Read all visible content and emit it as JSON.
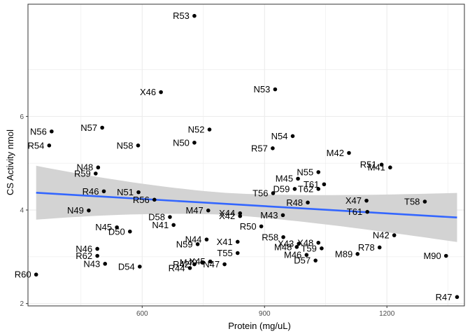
{
  "chart_data": {
    "type": "scatter",
    "title": "",
    "xlabel": "Protein (mg/uL)",
    "ylabel": "CS Activity nmol",
    "xlim": [
      320,
      1390
    ],
    "ylim": [
      1.95,
      8.4
    ],
    "x_ticks": [
      600,
      900,
      1200
    ],
    "y_ticks": [
      2,
      4,
      6
    ],
    "x_tick_labels": [
      "600",
      "900",
      "1200"
    ],
    "y_tick_labels": [
      "2",
      "4",
      "6"
    ],
    "grid": true,
    "legend": "none",
    "points": [
      {
        "label": "R53",
        "x": 728,
        "y": 8.15
      },
      {
        "label": "X46",
        "x": 646,
        "y": 6.52
      },
      {
        "label": "N53",
        "x": 926,
        "y": 6.58
      },
      {
        "label": "N56",
        "x": 378,
        "y": 5.68
      },
      {
        "label": "N57",
        "x": 502,
        "y": 5.76
      },
      {
        "label": "N52",
        "x": 765,
        "y": 5.72
      },
      {
        "label": "N54",
        "x": 969,
        "y": 5.58
      },
      {
        "label": "R54",
        "x": 372,
        "y": 5.38
      },
      {
        "label": "N58",
        "x": 590,
        "y": 5.38
      },
      {
        "label": "N50",
        "x": 728,
        "y": 5.44
      },
      {
        "label": "R57",
        "x": 920,
        "y": 5.32
      },
      {
        "label": "M42",
        "x": 1107,
        "y": 5.22
      },
      {
        "label": "R51",
        "x": 1187,
        "y": 4.97
      },
      {
        "label": "M41",
        "x": 1208,
        "y": 4.91
      },
      {
        "label": "N48",
        "x": 492,
        "y": 4.91
      },
      {
        "label": "R59",
        "x": 486,
        "y": 4.78
      },
      {
        "label": "N55",
        "x": 1032,
        "y": 4.81
      },
      {
        "label": "M45",
        "x": 982,
        "y": 4.67
      },
      {
        "label": "T61",
        "x": 1046,
        "y": 4.55
      },
      {
        "label": "R46",
        "x": 506,
        "y": 4.4
      },
      {
        "label": "N51",
        "x": 591,
        "y": 4.38
      },
      {
        "label": "T56",
        "x": 921,
        "y": 4.36
      },
      {
        "label": "D59",
        "x": 974,
        "y": 4.45
      },
      {
        "label": "T62",
        "x": 1032,
        "y": 4.45
      },
      {
        "label": "R56",
        "x": 630,
        "y": 4.22
      },
      {
        "label": "R48",
        "x": 1006,
        "y": 4.16
      },
      {
        "label": "X47",
        "x": 1150,
        "y": 4.2
      },
      {
        "label": "T58",
        "x": 1293,
        "y": 4.18
      },
      {
        "label": "N49",
        "x": 469,
        "y": 3.99
      },
      {
        "label": "M47",
        "x": 762,
        "y": 3.99
      },
      {
        "label": "T61",
        "x": 1152,
        "y": 3.96
      },
      {
        "label": "X44",
        "x": 840,
        "y": 3.93
      },
      {
        "label": "X42",
        "x": 840,
        "y": 3.87
      },
      {
        "label": "M43",
        "x": 945,
        "y": 3.89
      },
      {
        "label": "D58",
        "x": 668,
        "y": 3.85
      },
      {
        "label": "R50",
        "x": 892,
        "y": 3.65
      },
      {
        "label": "N41",
        "x": 677,
        "y": 3.68
      },
      {
        "label": "N45",
        "x": 538,
        "y": 3.63
      },
      {
        "label": "D50",
        "x": 570,
        "y": 3.54
      },
      {
        "label": "R58",
        "x": 946,
        "y": 3.42
      },
      {
        "label": "N44",
        "x": 758,
        "y": 3.37
      },
      {
        "label": "X41",
        "x": 834,
        "y": 3.32
      },
      {
        "label": "X43",
        "x": 984,
        "y": 3.28
      },
      {
        "label": "X48",
        "x": 1032,
        "y": 3.3
      },
      {
        "label": "N42",
        "x": 1218,
        "y": 3.46
      },
      {
        "label": "N59",
        "x": 736,
        "y": 3.27
      },
      {
        "label": "M48",
        "x": 979,
        "y": 3.21
      },
      {
        "label": "T59",
        "x": 1040,
        "y": 3.18
      },
      {
        "label": "R78",
        "x": 1182,
        "y": 3.2
      },
      {
        "label": "N46",
        "x": 490,
        "y": 3.17
      },
      {
        "label": "T55",
        "x": 834,
        "y": 3.08
      },
      {
        "label": "M89",
        "x": 1128,
        "y": 3.06
      },
      {
        "label": "M46",
        "x": 1003,
        "y": 3.04
      },
      {
        "label": "R62",
        "x": 490,
        "y": 3.02
      },
      {
        "label": "M90",
        "x": 1345,
        "y": 3.02
      },
      {
        "label": "D57",
        "x": 1025,
        "y": 2.92
      },
      {
        "label": "N43",
        "x": 509,
        "y": 2.85
      },
      {
        "label": "D54",
        "x": 594,
        "y": 2.79
      },
      {
        "label": "R42",
        "x": 728,
        "y": 2.84
      },
      {
        "label": "M49",
        "x": 747,
        "y": 2.88
      },
      {
        "label": "X45",
        "x": 767,
        "y": 2.9
      },
      {
        "label": "N47",
        "x": 802,
        "y": 2.84
      },
      {
        "label": "R44",
        "x": 717,
        "y": 2.76
      },
      {
        "label": "R60",
        "x": 340,
        "y": 2.62
      },
      {
        "label": "R47",
        "x": 1372,
        "y": 2.14
      }
    ],
    "trend": {
      "method": "linear",
      "x": [
        340,
        1372
      ],
      "y": [
        4.37,
        3.84
      ],
      "ci_lower": [
        3.67,
        3.31
      ],
      "ci_upper": [
        5.06,
        4.36
      ]
    },
    "colors": {
      "point": "#000000",
      "line": "#3366ff",
      "ribbon": "#d3d3d3",
      "grid": "#ebebeb",
      "border": "#333333"
    }
  }
}
